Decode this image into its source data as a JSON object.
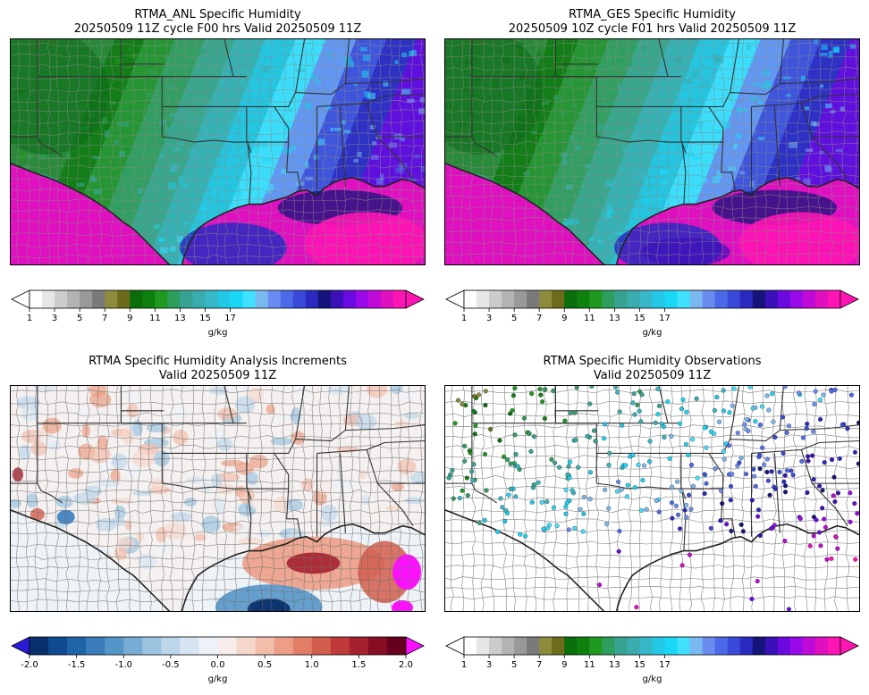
{
  "panels": [
    {
      "id": "anl",
      "title_line1": "RTMA_ANL Specific Humidity",
      "title_line2": "20250509 11Z cycle F00 hrs Valid 20250509 11Z",
      "kind": "field",
      "colorbar": "humidity"
    },
    {
      "id": "ges",
      "title_line1": "RTMA_GES Specific Humidity",
      "title_line2": "20250509 10Z cycle F01 hrs Valid 20250509 11Z",
      "kind": "field",
      "colorbar": "humidity"
    },
    {
      "id": "inc",
      "title_line1": "RTMA Specific Humidity Analysis Increments",
      "title_line2": "Valid 20250509 11Z",
      "kind": "increment",
      "colorbar": "increment"
    },
    {
      "id": "obs",
      "title_line1": "RTMA Specific Humidity Observations",
      "title_line2": "Valid 20250509 11Z",
      "kind": "obs",
      "colorbar": "humidity"
    }
  ],
  "colorbars": {
    "humidity": {
      "unit": "g/kg",
      "ticks": [
        "1",
        "3",
        "5",
        "7",
        "9",
        "11",
        "13",
        "15",
        "17"
      ],
      "colors": [
        "#ffffff",
        "#e6e6e6",
        "#cccccc",
        "#b3b3b3",
        "#999999",
        "#7a7a7a",
        "#8c8c3c",
        "#6b6b1a",
        "#0a6e0a",
        "#0e800e",
        "#1f9a1f",
        "#2e9e5e",
        "#36a392",
        "#3aacad",
        "#36b8c8",
        "#22c8e6",
        "#1ad8f5",
        "#40e0ff",
        "#7ab8f0",
        "#6a8cf0",
        "#4a6ae8",
        "#3a4ad8",
        "#2a2ac0",
        "#14147a",
        "#3a10b8",
        "#6a0ae0",
        "#9a0ae8",
        "#c00ad8",
        "#e010c0",
        "#ff14b4"
      ],
      "extend_low": "#ffffff",
      "extend_high": "#ff14b4"
    },
    "increment": {
      "unit": "g/kg",
      "ticks": [
        "-2.0",
        "-1.5",
        "-1.0",
        "-0.5",
        "0.0",
        "0.5",
        "1.0",
        "1.5",
        "2.0"
      ],
      "colors": [
        "#08306b",
        "#0d4a8f",
        "#1f63a8",
        "#3a7dba",
        "#5596c8",
        "#78acd4",
        "#9cc3e0",
        "#bcd6ea",
        "#d6e5f1",
        "#ecf2f8",
        "#f8ecea",
        "#f6d7cc",
        "#f2bda9",
        "#ec9f86",
        "#e17f66",
        "#d25d4c",
        "#bf3b39",
        "#a52130",
        "#880c24",
        "#67001f"
      ],
      "extend_low": "#2a1ad8",
      "extend_high": "#ff10ff"
    }
  },
  "map_colors": {
    "coast": "#222222",
    "state": "#333333",
    "county_field": "#8a8a8a",
    "county_light": "#6a6a6a",
    "ocean_inc": "#eef3f8",
    "obs_bg": "#ffffff"
  }
}
